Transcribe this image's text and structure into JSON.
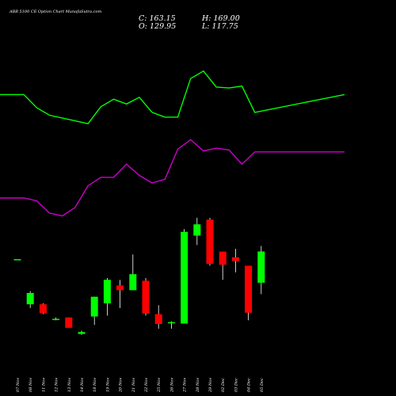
{
  "chart_data": {
    "type": "candlestick",
    "title": "ABB 5100 CE Option  Chart MunafaSutra.com",
    "stats": {
      "close": "C: 163.15",
      "open": "O: 129.95",
      "high": "H: 169.00",
      "low": "L: 117.75"
    },
    "categories": [
      "07 Nov",
      "08 Nov",
      "11 Nov",
      "12 Nov",
      "13 Nov",
      "14 Nov",
      "18 Nov",
      "19 Nov",
      "20 Nov",
      "21 Nov",
      "22 Nov",
      "25 Nov",
      "26 Nov",
      "27 Nov",
      "28 Nov",
      "29 Nov",
      "02 Dec",
      "03 Dec",
      "04 Dec",
      "05 Dec"
    ],
    "candles": [
      {
        "o": 155.0,
        "h": 155.0,
        "l": 155.0,
        "c": 155.0,
        "color": "green"
      },
      {
        "o": 107.0,
        "h": 121.0,
        "l": 103.0,
        "c": 119.0,
        "color": "green"
      },
      {
        "o": 107.0,
        "h": 108.0,
        "l": 96.5,
        "c": 97.5,
        "color": "red"
      },
      {
        "o": 91.5,
        "h": 93.0,
        "l": 90.0,
        "c": 90.5,
        "color": "green"
      },
      {
        "o": 93.0,
        "h": 93.0,
        "l": 82.0,
        "c": 82.0,
        "color": "red"
      },
      {
        "o": 75.5,
        "h": 79.0,
        "l": 74.5,
        "c": 77.5,
        "color": "green"
      },
      {
        "o": 94.0,
        "h": 115.0,
        "l": 85.0,
        "c": 115.0,
        "color": "green"
      },
      {
        "o": 108.0,
        "h": 135.0,
        "l": 95.0,
        "c": 133.0,
        "color": "green"
      },
      {
        "o": 127.0,
        "h": 133.0,
        "l": 103.0,
        "c": 122.0,
        "color": "red"
      },
      {
        "o": 122.0,
        "h": 160.0,
        "l": 122.0,
        "c": 139.0,
        "color": "green"
      },
      {
        "o": 132.0,
        "h": 135.0,
        "l": 95.0,
        "c": 97.0,
        "color": "red"
      },
      {
        "o": 96.5,
        "h": 106.0,
        "l": 81.0,
        "c": 86.0,
        "color": "red"
      },
      {
        "o": 87.0,
        "h": 89.0,
        "l": 81.0,
        "c": 88.0,
        "color": "green"
      },
      {
        "o": 86.5,
        "h": 187.0,
        "l": 86.5,
        "c": 184.0,
        "color": "green"
      },
      {
        "o": 180.0,
        "h": 199.0,
        "l": 170.0,
        "c": 192.0,
        "color": "green"
      },
      {
        "o": 197.0,
        "h": 199.0,
        "l": 148.0,
        "c": 150.0,
        "color": "red"
      },
      {
        "o": 163.0,
        "h": 163.0,
        "l": 133.0,
        "c": 149.0,
        "color": "red"
      },
      {
        "o": 157.0,
        "h": 166.0,
        "l": 141.0,
        "c": 153.0,
        "color": "red"
      },
      {
        "o": 148.0,
        "h": 148.0,
        "l": 90.0,
        "c": 98.0,
        "color": "red"
      },
      {
        "o": 129.95,
        "h": 169.0,
        "l": 117.75,
        "c": 163.15,
        "color": "green",
        "note": "drawn unreversed on screen"
      }
    ],
    "line_green": [
      330,
      330,
      316,
      308,
      305,
      302,
      299,
      317,
      325,
      320,
      327,
      311,
      306,
      306,
      347,
      355,
      338,
      337,
      339,
      311,
      330
    ],
    "line_magenta": [
      220,
      220,
      217,
      204,
      201,
      210,
      233,
      242,
      242,
      256,
      244,
      236,
      240,
      272,
      282,
      270,
      273,
      271,
      256,
      269,
      269
    ],
    "price_range": [
      60,
      380
    ]
  }
}
